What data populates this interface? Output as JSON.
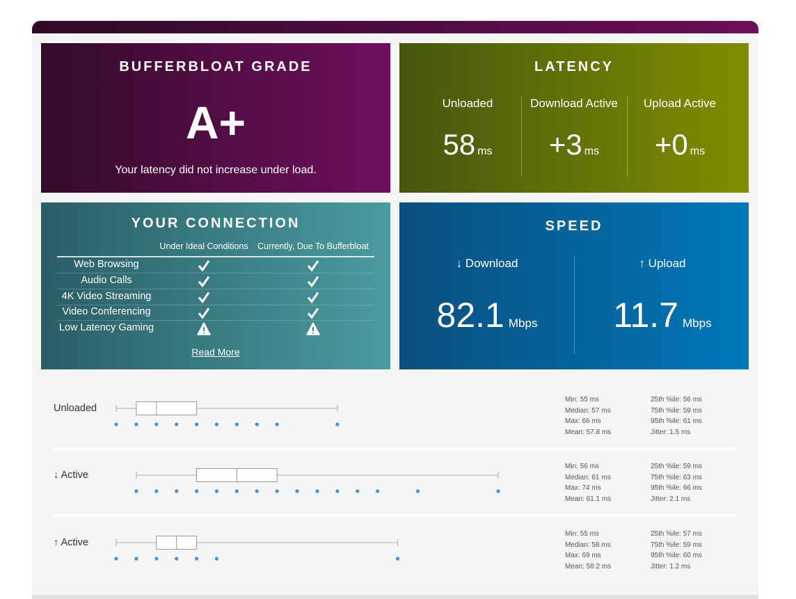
{
  "grade": {
    "title": "BUFFERBLOAT GRADE",
    "grade": "A+",
    "note": "Your latency did not increase under load."
  },
  "latency": {
    "title": "LATENCY",
    "items": [
      {
        "label": "Unloaded",
        "value": "58",
        "unit": "ms"
      },
      {
        "label": "Download Active",
        "value": "+3",
        "unit": "ms"
      },
      {
        "label": "Upload Active",
        "value": "+0",
        "unit": "ms"
      }
    ]
  },
  "connection": {
    "title": "YOUR CONNECTION",
    "columns": [
      "Under Ideal Conditions",
      "Currently, Due To Bufferbloat"
    ],
    "rows": [
      {
        "name": "Web Browsing",
        "ideal": true,
        "current": true
      },
      {
        "name": "Audio Calls",
        "ideal": true,
        "current": true
      },
      {
        "name": "4K Video Streaming",
        "ideal": true,
        "current": true
      },
      {
        "name": "Video Conferencing",
        "ideal": true,
        "current": true
      },
      {
        "name": "Low Latency Gaming",
        "ideal": false,
        "current": false
      }
    ],
    "link": "Read More"
  },
  "speed": {
    "title": "SPEED",
    "items": [
      {
        "label": "↓ Download",
        "value": "82.1",
        "unit": "Mbps"
      },
      {
        "label": "↑ Upload",
        "value": "11.7",
        "unit": "Mbps"
      }
    ]
  },
  "latency_details": [
    {
      "label": "Unloaded",
      "stats": {
        "min": {
          "value": 55,
          "label": "Min: 55 ms"
        },
        "median": {
          "value": 57,
          "label": "Median: 57 ms"
        },
        "max": {
          "value": 66,
          "label": "Max: 66 ms"
        },
        "mean": "Mean: 57.8 ms",
        "p25": {
          "value": 56,
          "label": "25th %ile: 56 ms"
        },
        "p75": {
          "value": 59,
          "label": "75th %ile: 59 ms"
        },
        "p95": "95th %ile: 61 ms",
        "jitter": "Jitter: 1.5 ms"
      },
      "samples": [
        55,
        56,
        57,
        58,
        59,
        60,
        61,
        62,
        63,
        66
      ]
    },
    {
      "label": "↓ Active",
      "stats": {
        "min": {
          "value": 56,
          "label": "Min: 56 ms"
        },
        "median": {
          "value": 61,
          "label": "Median: 61 ms"
        },
        "max": {
          "value": 74,
          "label": "Max: 74 ms"
        },
        "mean": "Mean: 61.1 ms",
        "p25": {
          "value": 59,
          "label": "25th %ile: 59 ms"
        },
        "p75": {
          "value": 63,
          "label": "75th %ile: 63 ms"
        },
        "p95": "95th %ile: 66 ms",
        "jitter": "Jitter: 2.1 ms"
      },
      "samples": [
        56,
        57,
        58,
        59,
        60,
        61,
        62,
        63,
        64,
        65,
        66,
        67,
        68,
        70,
        74
      ]
    },
    {
      "label": "↑ Active",
      "stats": {
        "min": {
          "value": 55,
          "label": "Min: 55 ms"
        },
        "median": {
          "value": 58,
          "label": "Median: 58 ms"
        },
        "max": {
          "value": 69,
          "label": "Max: 69 ms"
        },
        "mean": "Mean: 58.2 ms",
        "p25": {
          "value": 57,
          "label": "25th %ile: 57 ms"
        },
        "p75": {
          "value": 59,
          "label": "75th %ile: 59 ms"
        },
        "p95": "95th %ile: 60 ms",
        "jitter": "Jitter: 1.2 ms"
      },
      "samples": [
        55,
        56,
        57,
        58,
        59,
        60,
        69
      ]
    }
  ]
}
